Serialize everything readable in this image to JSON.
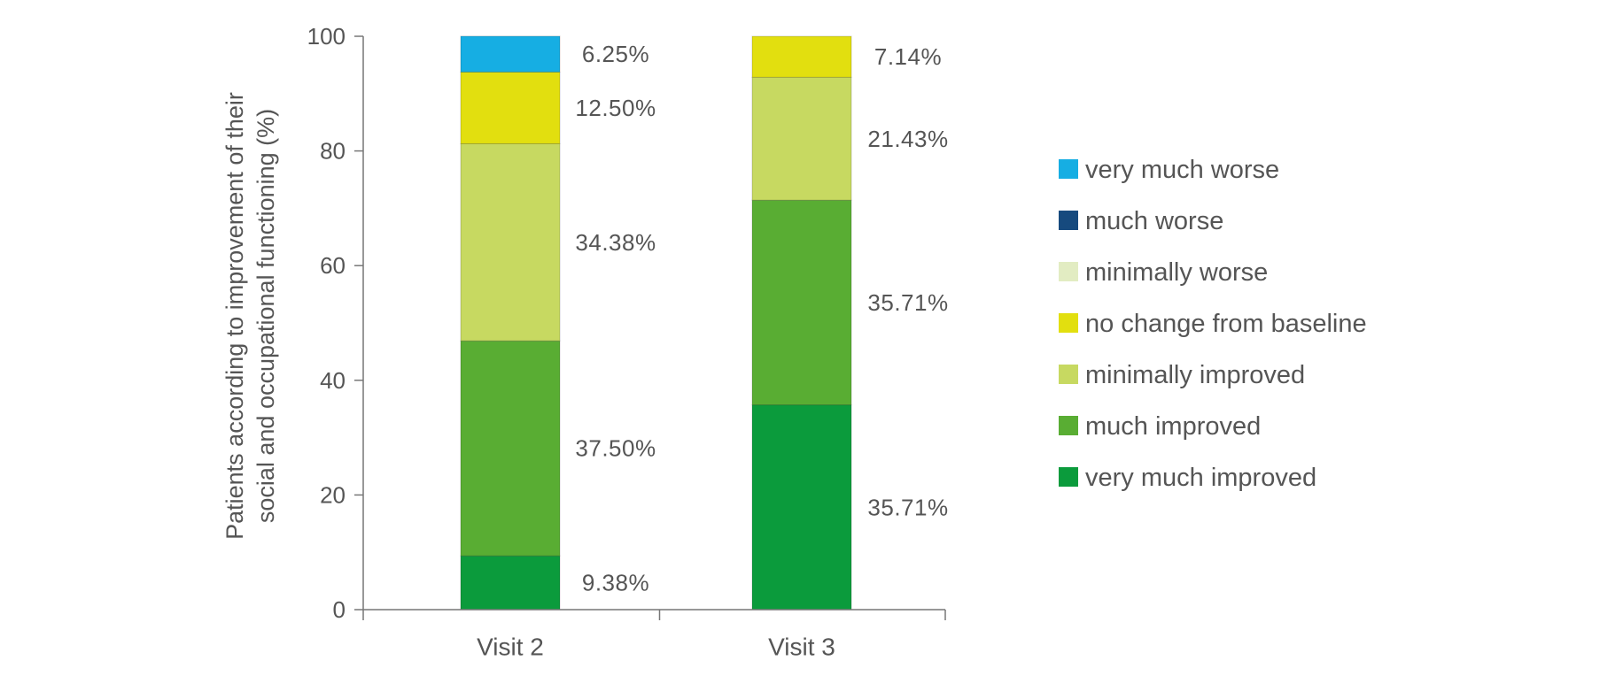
{
  "chart_data": {
    "type": "bar",
    "stacked": true,
    "title": "",
    "xlabel": "",
    "ylabel": [
      "Patients according to improvement of their",
      "social and occupational functioning (%)"
    ],
    "ylim": [
      0,
      100
    ],
    "yticks": [
      0,
      20,
      40,
      60,
      80,
      100
    ],
    "grid": false,
    "legend_position": "right",
    "categories": [
      "Visit 2",
      "Visit 3"
    ],
    "series": [
      {
        "name": "very much improved",
        "color": "#0b9b3c",
        "values": [
          9.38,
          35.71
        ],
        "labels": [
          "9.38%",
          "35.71%"
        ]
      },
      {
        "name": "much improved",
        "color": "#59ad33",
        "values": [
          37.5,
          35.71
        ],
        "labels": [
          "37.50%",
          "35.71%"
        ]
      },
      {
        "name": "minimally improved",
        "color": "#c7d961",
        "values": [
          34.38,
          21.43
        ],
        "labels": [
          "34.38%",
          "21.43%"
        ]
      },
      {
        "name": "no change from baseline",
        "color": "#e2df0f",
        "values": [
          12.5,
          7.14
        ],
        "labels": [
          "12.50%",
          "7.14%"
        ]
      },
      {
        "name": "minimally worse",
        "color": "#e2ecc2",
        "values": [
          0,
          0
        ],
        "labels": [
          "",
          ""
        ]
      },
      {
        "name": "much worse",
        "color": "#164a7e",
        "values": [
          0,
          0
        ],
        "labels": [
          "",
          ""
        ]
      },
      {
        "name": "very much worse",
        "color": "#16aee3",
        "values": [
          6.25,
          0
        ],
        "labels": [
          "6.25%",
          ""
        ]
      }
    ],
    "legend_order": [
      "very much worse",
      "much worse",
      "minimally worse",
      "no change from baseline",
      "minimally improved",
      "much improved",
      "very much improved"
    ]
  }
}
